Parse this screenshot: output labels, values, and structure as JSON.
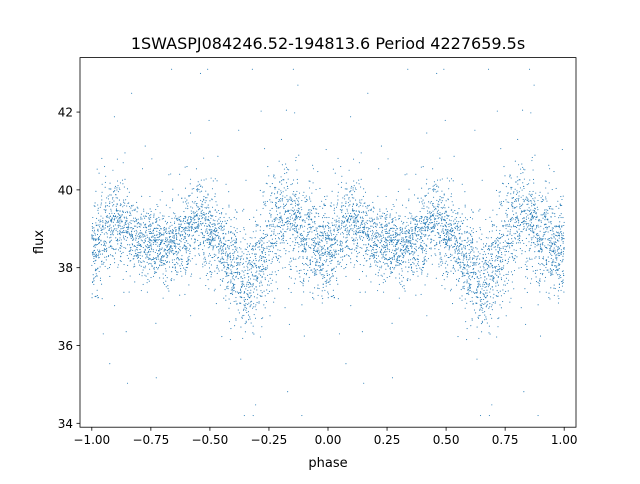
{
  "chart_data": {
    "type": "scatter",
    "title": "1SWASPJ084246.52-194813.6 Period 4227659.5s",
    "xlabel": "phase",
    "ylabel": "flux",
    "xlim": [
      -1.05,
      1.05
    ],
    "ylim": [
      33.9,
      43.4
    ],
    "x_ticks": [
      -1.0,
      -0.75,
      -0.5,
      -0.25,
      0.0,
      0.25,
      0.5,
      0.75,
      1.0
    ],
    "x_tick_labels": [
      "−1.00",
      "−0.75",
      "−0.50",
      "−0.25",
      "0.00",
      "0.25",
      "0.50",
      "0.75",
      "1.00"
    ],
    "y_ticks": [
      34,
      36,
      38,
      40,
      42
    ],
    "y_tick_labels": [
      "34",
      "36",
      "38",
      "40",
      "42"
    ],
    "grid": false,
    "legend": "none",
    "marker_color": "#1f77b4",
    "series": [
      {
        "profile_phase": [
          0.0,
          0.05,
          0.1,
          0.15,
          0.2,
          0.25,
          0.3,
          0.35,
          0.4,
          0.45,
          0.5,
          0.55,
          0.6,
          0.65,
          0.7,
          0.75,
          0.8,
          0.85,
          0.9,
          0.95,
          1.0
        ],
        "profile_flux": [
          38.4,
          38.8,
          39.2,
          39.0,
          38.7,
          38.6,
          38.5,
          38.6,
          38.9,
          39.2,
          39.0,
          38.5,
          38.0,
          37.6,
          37.9,
          38.8,
          39.4,
          39.2,
          38.9,
          38.5,
          38.4
        ],
        "profile_scatter": [
          0.6,
          0.6,
          0.55,
          0.5,
          0.45,
          0.45,
          0.45,
          0.45,
          0.5,
          0.55,
          0.55,
          0.55,
          0.6,
          0.65,
          0.65,
          0.7,
          0.75,
          0.7,
          0.6,
          0.6,
          0.6
        ]
      }
    ]
  }
}
